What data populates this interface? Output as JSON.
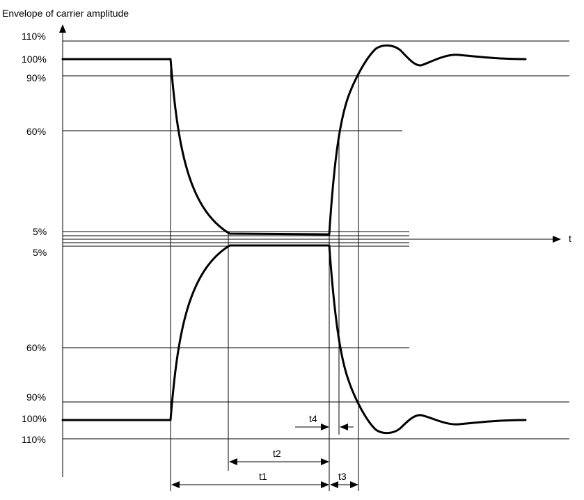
{
  "y_axis_label": "Envelope of carrier amplitude",
  "x_axis_label": "t",
  "upper_levels": [
    "110%",
    "100%",
    "90%",
    "60%",
    "5%"
  ],
  "lower_levels": [
    "5%",
    "60%",
    "90%",
    "100%",
    "110%"
  ],
  "intervals": {
    "t1": "t1",
    "t2": "t2",
    "t3": "t3",
    "t4": "t4"
  }
}
